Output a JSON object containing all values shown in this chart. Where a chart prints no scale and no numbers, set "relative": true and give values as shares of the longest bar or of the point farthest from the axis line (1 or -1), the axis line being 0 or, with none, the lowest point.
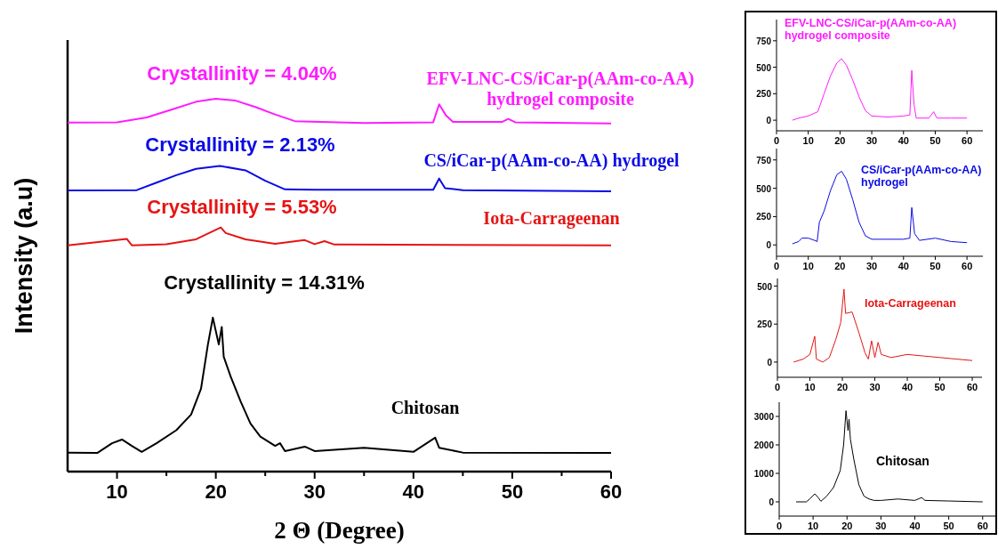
{
  "chart_data": [
    {
      "type": "line",
      "relative": true,
      "xlabel": "2 Θ (Degree)",
      "ylabel": "Intensity (a.u)",
      "tick_labels": "x",
      "xlim": [
        5,
        60
      ],
      "xticks": [
        10,
        {
          "value": 15,
          "label": null
        },
        20,
        {
          "value": 25,
          "label": null
        },
        30,
        {
          "value": 35,
          "label": null
        },
        40,
        {
          "value": 45,
          "label": null
        },
        50,
        {
          "value": 55,
          "label": null
        },
        60
      ],
      "annotations": [
        "Crystallinity = 4.04%",
        "Crystallinity = 2.13%",
        "Crystallinity = 5.53%",
        "Crystallinity = 14.31%"
      ],
      "series": [
        {
          "name": "EFV-LNC-CS/iCar-p(AAm-co-AA) hydrogel composite",
          "color": "#ff1cff",
          "x": [
            5,
            10,
            13,
            16,
            18,
            20,
            22,
            24,
            26,
            28,
            35,
            42,
            42.6,
            43.3,
            44,
            49,
            49.6,
            50.3,
            60
          ],
          "values": [
            0.936,
            0.937,
            0.95,
            0.975,
            0.992,
            1.0,
            0.995,
            0.978,
            0.958,
            0.94,
            0.935,
            0.937,
            0.985,
            0.955,
            0.938,
            0.938,
            0.946,
            0.937,
            0.934
          ]
        },
        {
          "name": "CS/iCar-p(AAm-co-AA) hydrogel",
          "color": "#0a0ae6",
          "x": [
            5,
            12,
            14,
            16,
            18,
            20.4,
            23,
            25,
            27,
            30,
            42,
            42.6,
            43.2,
            45,
            60
          ],
          "values": [
            0.754,
            0.755,
            0.775,
            0.795,
            0.812,
            0.82,
            0.808,
            0.78,
            0.757,
            0.756,
            0.756,
            0.786,
            0.76,
            0.755,
            0.752
          ]
        },
        {
          "name": "Iota-Carrageenan",
          "color": "#e61414",
          "x": [
            5,
            11,
            11.5,
            15,
            18,
            20.5,
            21,
            23,
            26,
            29,
            30,
            31,
            32,
            60
          ],
          "values": [
            0.607,
            0.624,
            0.607,
            0.61,
            0.623,
            0.655,
            0.64,
            0.623,
            0.611,
            0.621,
            0.61,
            0.618,
            0.609,
            0.607
          ]
        },
        {
          "name": "Chitosan",
          "color": "#000000",
          "x": [
            5,
            8,
            9.5,
            10.5,
            11.5,
            12.5,
            14,
            16,
            17.5,
            18.5,
            19.2,
            19.7,
            20.3,
            20.6,
            20.8,
            21.5,
            22.5,
            23.5,
            24.5,
            26,
            26.5,
            27,
            29,
            30,
            35,
            40,
            42.2,
            42.6,
            45,
            60
          ],
          "values": [
            0.051,
            0.05,
            0.076,
            0.086,
            0.069,
            0.053,
            0.076,
            0.111,
            0.153,
            0.222,
            0.341,
            0.413,
            0.341,
            0.388,
            0.308,
            0.255,
            0.189,
            0.129,
            0.094,
            0.069,
            0.076,
            0.055,
            0.067,
            0.055,
            0.064,
            0.053,
            0.091,
            0.064,
            0.051,
            0.05
          ]
        }
      ]
    },
    {
      "type": "line",
      "xlim": [
        0,
        65
      ],
      "xticks": [
        0,
        10,
        20,
        30,
        40,
        50,
        60
      ],
      "ylim": [
        -100,
        950
      ],
      "yticks": [
        0,
        250,
        500,
        750
      ],
      "series": [
        {
          "name": "EFV-LNC-CS/iCar-p(AAm-co-AA) hydrogel composite",
          "color": "#ff1cff",
          "x": [
            5,
            7,
            10,
            13,
            15,
            17,
            19,
            20.5,
            22,
            24,
            26,
            28,
            30,
            35,
            40,
            42,
            42.6,
            43.3,
            44,
            48,
            49.5,
            50.5,
            55,
            60
          ],
          "values": [
            0,
            20,
            40,
            80,
            250,
            420,
            540,
            580,
            520,
            380,
            220,
            90,
            40,
            30,
            40,
            50,
            470,
            150,
            20,
            20,
            80,
            20,
            20,
            20
          ]
        }
      ]
    },
    {
      "type": "line",
      "xlim": [
        0,
        65
      ],
      "xticks": [
        0,
        10,
        20,
        30,
        40,
        50,
        60
      ],
      "ylim": [
        -100,
        850
      ],
      "yticks": [
        0,
        250,
        500,
        750
      ],
      "series": [
        {
          "name": "CS/iCar-p(AAm-co-AA) hydrogel",
          "color": "#0a0ae6",
          "x": [
            5,
            7,
            8,
            10,
            12,
            12.8,
            13.5,
            15,
            17,
            19,
            20.5,
            22,
            24,
            26,
            28,
            30,
            35,
            40,
            42,
            42.6,
            43.5,
            45,
            50,
            55,
            60
          ],
          "values": [
            10,
            30,
            60,
            60,
            40,
            30,
            200,
            300,
            480,
            620,
            650,
            580,
            400,
            200,
            80,
            50,
            50,
            50,
            60,
            330,
            100,
            40,
            60,
            30,
            20
          ]
        }
      ]
    },
    {
      "type": "line",
      "xlim": [
        0,
        63
      ],
      "xticks": [
        0,
        10,
        20,
        30,
        40,
        50,
        60
      ],
      "ylim": [
        -100,
        550
      ],
      "yticks": [
        0,
        250,
        500
      ],
      "series": [
        {
          "name": "Iota-Carrageenan",
          "color": "#e61414",
          "x": [
            5,
            8,
            10,
            11.5,
            12,
            14,
            16,
            18,
            19.5,
            20.5,
            21,
            23,
            25,
            27,
            28,
            29,
            30,
            31,
            32,
            35,
            40,
            45,
            50,
            55,
            60
          ],
          "values": [
            0,
            20,
            50,
            170,
            20,
            0,
            30,
            150,
            260,
            480,
            320,
            330,
            200,
            60,
            20,
            140,
            30,
            130,
            50,
            30,
            50,
            40,
            30,
            20,
            10
          ]
        }
      ]
    },
    {
      "type": "line",
      "xlim": [
        0,
        64
      ],
      "xticks": [
        0,
        10,
        20,
        30,
        40,
        50,
        60
      ],
      "ylim": [
        -500,
        3500
      ],
      "yticks": [
        0,
        1000,
        2000,
        3000
      ],
      "series": [
        {
          "name": "Chitosan",
          "color": "#000000",
          "x": [
            5,
            8,
            9,
            10.5,
            11.5,
            12.3,
            14,
            16,
            18,
            19,
            19.7,
            20.3,
            20.6,
            21,
            22,
            23.5,
            25,
            26.5,
            28,
            30,
            35,
            40,
            42,
            43,
            50,
            60
          ],
          "values": [
            0,
            0,
            100,
            280,
            150,
            20,
            200,
            500,
            1100,
            2000,
            3200,
            2500,
            2900,
            2200,
            1500,
            600,
            200,
            100,
            50,
            50,
            100,
            50,
            150,
            50,
            30,
            0
          ]
        }
      ]
    }
  ]
}
